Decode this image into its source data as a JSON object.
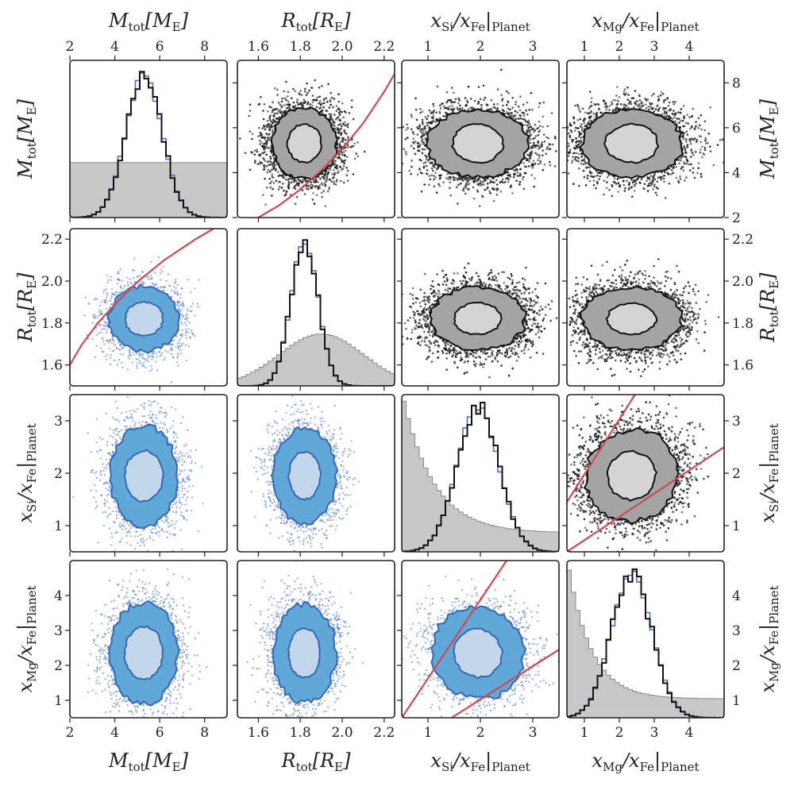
{
  "chart_data": {
    "type": "corner",
    "parameters": [
      {
        "key": "M",
        "label": "M",
        "sub": "tot",
        "unit": "[M",
        "unit_sub": "E",
        "unit_close": "]",
        "range": [
          2,
          9
        ],
        "ticks": [
          2,
          4,
          6,
          8
        ],
        "tick_labels": [
          "2",
          "4",
          "6",
          "8"
        ]
      },
      {
        "key": "R",
        "label": "R",
        "sub": "tot",
        "unit": "[R",
        "unit_sub": "E",
        "unit_close": "]",
        "range": [
          1.5,
          2.25
        ],
        "ticks": [
          1.6,
          1.8,
          2.0,
          2.2
        ],
        "tick_labels": [
          "1.6",
          "1.8",
          "2.0",
          "2.2"
        ]
      },
      {
        "key": "Si",
        "label": "x",
        "sub": "Si",
        "unit": "/x",
        "unit_sub": "Fe",
        "unit_close": "|",
        "unit_sub2": "Planet",
        "range": [
          0.5,
          3.5
        ],
        "ticks": [
          1,
          2,
          3
        ],
        "tick_labels": [
          "1",
          "2",
          "3"
        ]
      },
      {
        "key": "Mg",
        "label": "x",
        "sub": "Mg",
        "unit": "/x",
        "unit_sub": "Fe",
        "unit_close": "|",
        "unit_sub2": "Planet",
        "range": [
          0.5,
          5.0
        ],
        "ticks": [
          1,
          2,
          3,
          4
        ],
        "tick_labels": [
          "1",
          "2",
          "3",
          "4"
        ]
      }
    ],
    "marginals": [
      {
        "param": "M",
        "mean": 5.3,
        "sd": 0.8,
        "prior": "uniform",
        "prior_level": 0.35
      },
      {
        "param": "R",
        "mean": 1.82,
        "sd": 0.065,
        "prior": "gaussian",
        "prior_mean": 1.9,
        "prior_sd": 0.2,
        "prior_level": 0.33
      },
      {
        "param": "Si",
        "mean": 1.95,
        "sd": 0.4,
        "prior": "decaying",
        "prior_level": 1.7
      },
      {
        "param": "Mg",
        "mean": 2.35,
        "sd": 0.58,
        "prior": "decaying",
        "prior_level": 1.5
      }
    ],
    "joint_posteriors": {
      "M_R": {
        "center": [
          5.3,
          1.82
        ],
        "inner_radii": [
          0.85,
          0.08
        ],
        "outer_radii": [
          1.55,
          0.155
        ]
      },
      "M_Si": {
        "center": [
          5.3,
          1.95
        ],
        "inner_radii": [
          0.85,
          0.48
        ],
        "outer_radii": [
          1.5,
          0.95
        ]
      },
      "M_Mg": {
        "center": [
          5.3,
          2.35
        ],
        "inner_radii": [
          0.85,
          0.75
        ],
        "outer_radii": [
          1.5,
          1.45
        ]
      },
      "R_Si": {
        "center": [
          1.82,
          1.95
        ],
        "inner_radii": [
          0.075,
          0.45
        ],
        "outer_radii": [
          0.15,
          0.9
        ]
      },
      "R_Mg": {
        "center": [
          1.82,
          2.35
        ],
        "inner_radii": [
          0.075,
          0.7
        ],
        "outer_radii": [
          0.15,
          1.4
        ]
      },
      "Si_Mg": {
        "center": [
          1.95,
          2.35
        ],
        "inner_radii": [
          0.45,
          0.7
        ],
        "outer_radii": [
          0.85,
          1.35
        ],
        "correlated": true
      }
    },
    "constraint_curves": {
      "M_R_boundary": [
        [
          1.6,
          2.0
        ],
        [
          1.7,
          2.55
        ],
        [
          1.8,
          3.25
        ],
        [
          1.9,
          4.1
        ],
        [
          2.0,
          5.05
        ],
        [
          2.1,
          6.2
        ],
        [
          2.2,
          7.6
        ],
        [
          2.25,
          8.4
        ]
      ],
      "Si_Mg_upper": [
        [
          0.5,
          0.5
        ],
        [
          2.5,
          5.0
        ]
      ],
      "Si_Mg_lower": [
        [
          1.45,
          0.5
        ],
        [
          3.5,
          2.45
        ]
      ]
    },
    "colors": {
      "upper_inner": "#d4d4d4",
      "upper_outer": "#a4a4a4",
      "upper_line": "#111111",
      "lower_inner": "#c2d8ea",
      "lower_outer": "#5fa8d8",
      "lower_line": "#3a66b0",
      "curve": "#cc4a4f",
      "prior_fill": "#c8c8c8",
      "prior_line": "#888888",
      "hist_black": "#111111",
      "hist_blue": "#4a72c0"
    }
  }
}
